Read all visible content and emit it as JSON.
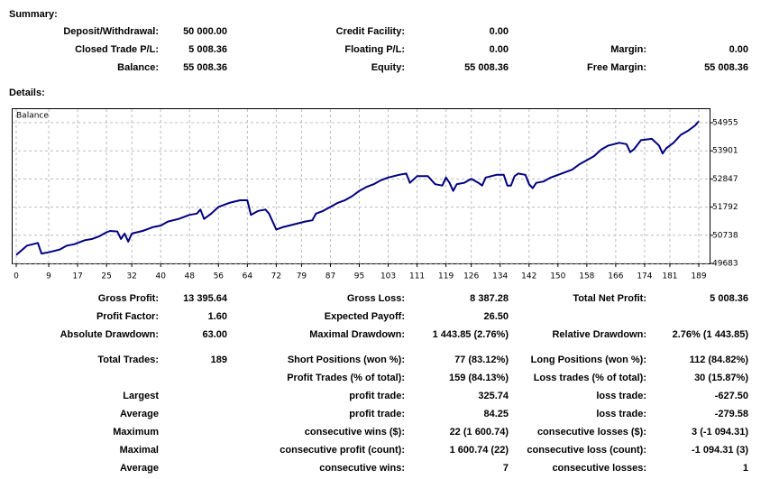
{
  "summary": {
    "title": "Summary:",
    "rows": [
      [
        {
          "label": "Deposit/Withdrawal:",
          "value": "50 000.00"
        },
        {
          "label": "Credit Facility:",
          "value": "0.00"
        },
        null
      ],
      [
        {
          "label": "Closed Trade P/L:",
          "value": "5 008.36"
        },
        {
          "label": "Floating P/L:",
          "value": "0.00"
        },
        {
          "label": "Margin:",
          "value": "0.00"
        }
      ],
      [
        {
          "label": "Balance:",
          "value": "55 008.36"
        },
        {
          "label": "Equity:",
          "value": "55 008.36"
        },
        {
          "label": "Free Margin:",
          "value": "55 008.36"
        }
      ]
    ]
  },
  "details": {
    "title": "Details:",
    "rows": [
      [
        {
          "label": "Gross Profit:",
          "value": "13 395.64"
        },
        {
          "label": "Gross Loss:",
          "value": "8 387.28"
        },
        {
          "label": "Total Net Profit:",
          "value": "5 008.36"
        }
      ],
      [
        {
          "label": "Profit Factor:",
          "value": "1.60"
        },
        {
          "label": "Expected Payoff:",
          "value": "26.50"
        },
        null
      ],
      [
        {
          "label": "Absolute Drawdown:",
          "value": "63.00"
        },
        {
          "label": "Maximal Drawdown:",
          "value": "1 443.85 (2.76%)"
        },
        {
          "label": "Relative Drawdown:",
          "value": "2.76% (1 443.85)"
        }
      ],
      [
        {
          "label": "Total Trades:",
          "value": "189"
        },
        {
          "label": "Short Positions (won %):",
          "value": "77 (83.12%)"
        },
        {
          "label": "Long Positions (won %):",
          "value": "112 (84.82%)"
        }
      ],
      [
        null,
        {
          "label": "Profit Trades (% of total):",
          "value": "159 (84.13%)"
        },
        {
          "label": "Loss trades (% of total):",
          "value": "30 (15.87%)"
        }
      ],
      [
        {
          "label": "Largest"
        },
        {
          "label": "profit trade:",
          "value": "325.74"
        },
        {
          "label": "loss trade:",
          "value": "-627.50"
        }
      ],
      [
        {
          "label": "Average"
        },
        {
          "label": "profit trade:",
          "value": "84.25"
        },
        {
          "label": "loss trade:",
          "value": "-279.58"
        }
      ],
      [
        {
          "label": "Maximum"
        },
        {
          "label": "consecutive wins ($):",
          "value": "22 (1 600.74)"
        },
        {
          "label": "consecutive losses ($):",
          "value": "3 (-1 094.31)"
        }
      ],
      [
        {
          "label": "Maximal"
        },
        {
          "label": "consecutive profit (count):",
          "value": "1 600.74 (22)"
        },
        {
          "label": "consecutive loss (count):",
          "value": "-1 094.31 (3)"
        }
      ],
      [
        {
          "label": "Average"
        },
        {
          "label": "consecutive wins:",
          "value": "7"
        },
        {
          "label": "consecutive losses:",
          "value": "1"
        }
      ]
    ]
  },
  "chart_data": {
    "type": "line",
    "title": "Balance",
    "x": [
      0,
      3,
      6,
      7,
      9,
      12,
      14,
      16,
      19,
      21,
      23,
      25,
      26,
      28,
      29,
      30,
      31,
      32,
      35,
      38,
      40,
      42,
      45,
      47,
      48,
      50,
      51,
      52,
      54,
      56,
      59,
      62,
      64,
      65,
      67,
      69,
      70,
      72,
      74,
      77,
      80,
      82,
      83,
      85,
      87,
      89,
      91,
      93,
      95,
      97,
      99,
      101,
      103,
      106,
      108,
      109,
      111,
      114,
      116,
      118,
      119,
      120,
      121,
      122,
      124,
      126,
      128,
      129,
      130,
      133,
      135,
      136,
      137,
      138,
      139,
      141,
      142,
      143,
      144,
      146,
      148,
      151,
      154,
      156,
      158,
      160,
      162,
      164,
      167,
      169,
      170,
      171,
      173,
      176,
      178,
      179,
      180,
      182,
      184,
      186,
      188,
      189
    ],
    "series": [
      {
        "name": "Balance",
        "color": "#000080",
        "values": [
          50000,
          50350,
          50450,
          50050,
          50100,
          50200,
          50350,
          50400,
          50550,
          50600,
          50700,
          50850,
          50900,
          50880,
          50600,
          50800,
          50500,
          50800,
          50900,
          51050,
          51100,
          51250,
          51350,
          51450,
          51500,
          51550,
          51700,
          51350,
          51550,
          51800,
          51950,
          52050,
          52050,
          51500,
          51650,
          51700,
          51550,
          50950,
          51050,
          51150,
          51250,
          51300,
          51550,
          51650,
          51800,
          51950,
          52050,
          52200,
          52400,
          52550,
          52650,
          52800,
          52900,
          53000,
          53050,
          52700,
          52950,
          52950,
          52650,
          52600,
          52900,
          52700,
          52400,
          52650,
          52700,
          52850,
          52700,
          52600,
          52900,
          53000,
          53000,
          52600,
          52600,
          52950,
          53050,
          53000,
          52650,
          52500,
          52700,
          52750,
          52900,
          53050,
          53200,
          53400,
          53550,
          53700,
          53950,
          54100,
          54200,
          54150,
          53850,
          53950,
          54300,
          54350,
          54100,
          53800,
          54000,
          54200,
          54500,
          54650,
          54850,
          55008.36
        ]
      }
    ],
    "xlim": [
      0,
      189
    ],
    "xticks": [
      0,
      9,
      17,
      25,
      32,
      40,
      48,
      56,
      64,
      72,
      79,
      87,
      95,
      103,
      111,
      119,
      126,
      134,
      142,
      150,
      158,
      166,
      174,
      181,
      189
    ],
    "ylim": [
      49683,
      54955
    ],
    "yticks": [
      49683,
      50738,
      51792,
      52847,
      53901,
      54955
    ],
    "grid": true
  }
}
